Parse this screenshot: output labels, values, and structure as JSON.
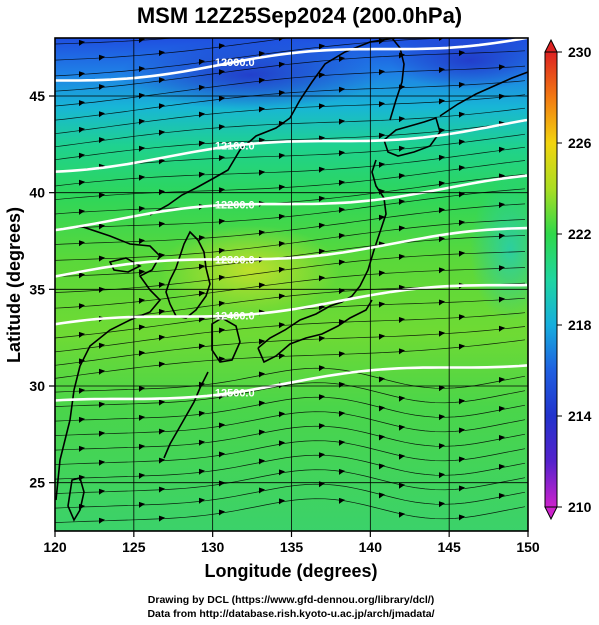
{
  "title": "MSM 12Z25Sep2024 (200.0hPa)",
  "map": {
    "xlabel": "Longitude (degrees)",
    "ylabel": "Latitude  (degrees)",
    "lon_range": [
      120,
      150
    ],
    "lat_range": [
      22.5,
      48
    ],
    "lon_ticks": [
      120,
      125,
      130,
      135,
      140,
      145,
      150
    ],
    "lat_ticks": [
      25,
      30,
      35,
      40,
      45
    ],
    "colorbar": {
      "min": 210,
      "max": 230,
      "tick_labels": [
        "230",
        "226",
        "222",
        "218",
        "214",
        "210"
      ],
      "tick_values": [
        230,
        226,
        222,
        218,
        214,
        210
      ]
    },
    "contours": [
      {
        "label": "12000.0",
        "lat": 45.8
      },
      {
        "label": "12100.0",
        "lat": 41.3
      },
      {
        "label": "12200.0",
        "lat": 38.3
      },
      {
        "label": "12300.0",
        "lat": 35.7
      },
      {
        "label": "12400.0",
        "lat": 33.0
      },
      {
        "label": "12500.0",
        "lat": 29.0
      }
    ]
  },
  "credits": {
    "line1": "Drawing by DCL (https://www.gfd-dennou.org/library/dcl/)",
    "line2": "Data from http://database.rish.kyoto-u.ac.jp/arch/jmadata/"
  }
}
